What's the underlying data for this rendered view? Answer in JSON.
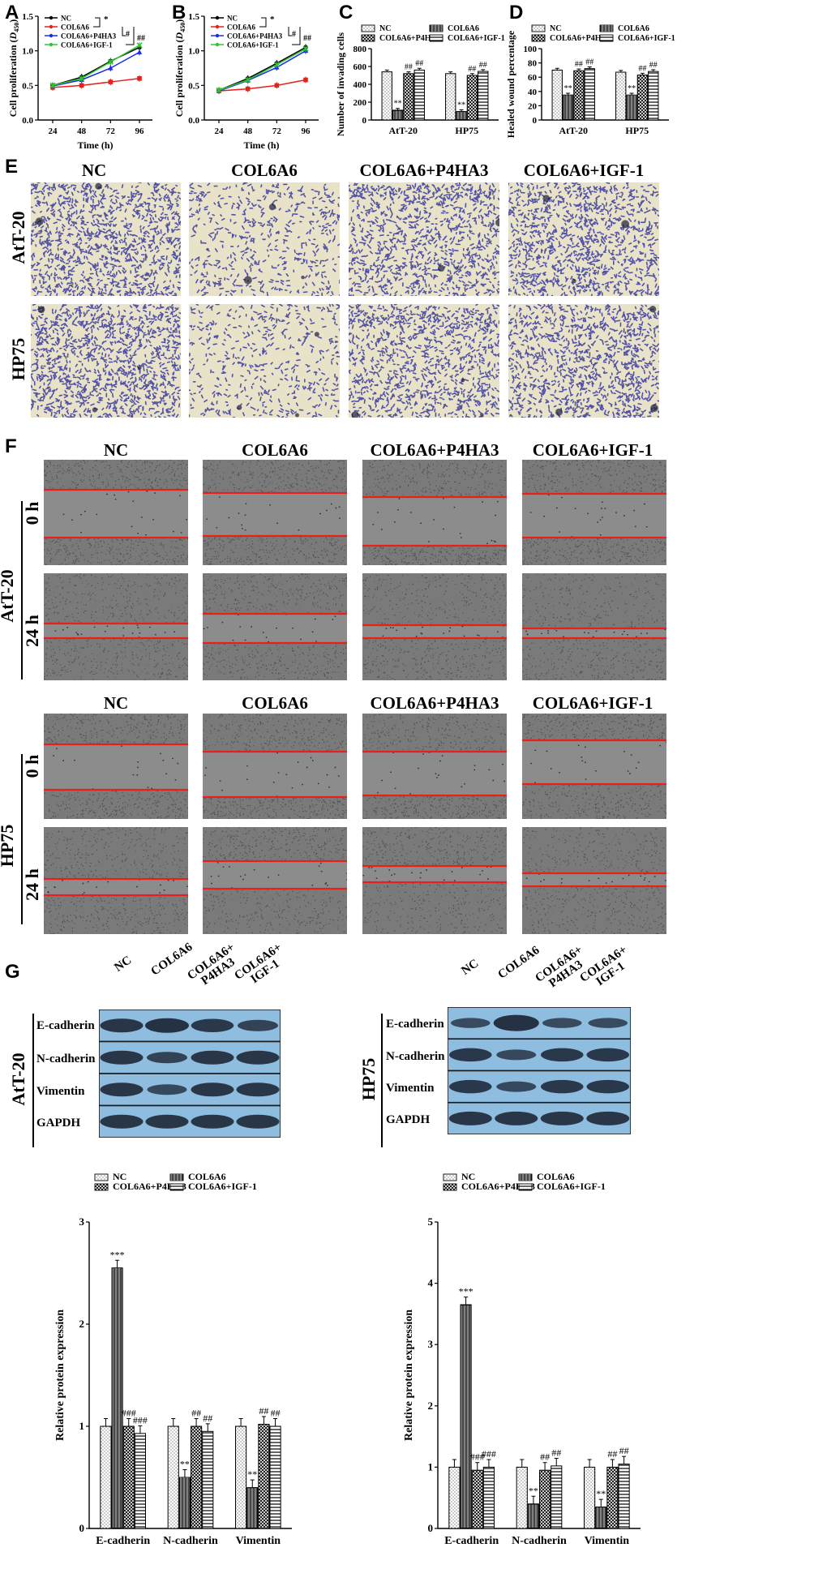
{
  "panel_letters": [
    "A",
    "B",
    "C",
    "D",
    "E",
    "F",
    "G"
  ],
  "groups": [
    "NC",
    "COL6A6",
    "COL6A6+P4HA3",
    "COL6A6+IGF-1"
  ],
  "cell_lines": [
    "AtT-20",
    "HP75"
  ],
  "time_labels": [
    "0 h",
    "24 h"
  ],
  "blot_lane_labels": [
    "NC",
    "COL6A6",
    "COL6A6+\nP4HA3",
    "COL6A6+\nIGF-1"
  ],
  "blot_bands": [
    "E-cadherin",
    "N-cadherin",
    "Vimentin",
    "GAPDH"
  ],
  "colors": {
    "nc": "#000000",
    "col6a6": "#e8201a",
    "p4ha3": "#1a2de8",
    "igf1": "#2ec82e",
    "stain_bg": "#e7e2c8",
    "stain_cell": "#3a3aa0",
    "wound_bg": "#7a7a7a",
    "wound_line": "#e8201a",
    "blot_bg": "#8fbde0",
    "band": "#1f2a3a"
  },
  "chart_data": [
    {
      "id": "A",
      "type": "line",
      "ylabel": "Cell proliferation (D450)",
      "xlabel": "Time (h)",
      "x": [
        24,
        48,
        72,
        96
      ],
      "ylim": [
        0.0,
        1.5
      ],
      "yticks": [
        "0.0",
        "0.5",
        "1.0",
        "1.5"
      ],
      "series": [
        {
          "name": "NC",
          "values": [
            0.5,
            0.62,
            0.85,
            1.05
          ]
        },
        {
          "name": "COL6A6",
          "values": [
            0.47,
            0.5,
            0.55,
            0.6
          ]
        },
        {
          "name": "COL6A6+P4HA3",
          "values": [
            0.49,
            0.58,
            0.75,
            0.98
          ]
        },
        {
          "name": "COL6A6+IGF-1",
          "values": [
            0.5,
            0.6,
            0.84,
            1.08
          ]
        }
      ],
      "annotations": [
        "*",
        "#",
        "##"
      ]
    },
    {
      "id": "B",
      "type": "line",
      "ylabel": "Cell proliferation (D450)",
      "xlabel": "Time (h)",
      "x": [
        24,
        48,
        72,
        96
      ],
      "ylim": [
        0.0,
        1.5
      ],
      "yticks": [
        "0.0",
        "0.5",
        "1.0",
        "1.5"
      ],
      "series": [
        {
          "name": "NC",
          "values": [
            0.43,
            0.6,
            0.82,
            1.05
          ]
        },
        {
          "name": "COL6A6",
          "values": [
            0.42,
            0.45,
            0.5,
            0.58
          ]
        },
        {
          "name": "COL6A6+P4HA3",
          "values": [
            0.42,
            0.57,
            0.76,
            1.0
          ]
        },
        {
          "name": "COL6A6+IGF-1",
          "values": [
            0.43,
            0.58,
            0.8,
            1.03
          ]
        }
      ],
      "annotations": [
        "*",
        "#",
        "##"
      ]
    },
    {
      "id": "C",
      "type": "bar",
      "ylabel": "Number of invading cells",
      "categories": [
        "AtT-20",
        "HP75"
      ],
      "ylim": [
        0,
        800
      ],
      "yticks": [
        "0",
        "200",
        "400",
        "600",
        "800"
      ],
      "series": [
        {
          "name": "NC",
          "values": [
            540,
            520
          ],
          "marks": [
            "",
            ""
          ]
        },
        {
          "name": "COL6A6",
          "values": [
            110,
            95
          ],
          "marks": [
            "**",
            "**"
          ]
        },
        {
          "name": "COL6A6+P4HA3",
          "values": [
            520,
            500
          ],
          "marks": [
            "##",
            "##"
          ]
        },
        {
          "name": "COL6A6+IGF-1",
          "values": [
            560,
            545
          ],
          "marks": [
            "##",
            "##"
          ]
        }
      ]
    },
    {
      "id": "D",
      "type": "bar",
      "ylabel": "Healed wound percentage",
      "categories": [
        "AtT-20",
        "HP75"
      ],
      "ylim": [
        0,
        100
      ],
      "yticks": [
        "0",
        "20",
        "40",
        "60",
        "80",
        "100"
      ],
      "series": [
        {
          "name": "NC",
          "values": [
            70,
            67
          ],
          "marks": [
            "",
            ""
          ]
        },
        {
          "name": "COL6A6",
          "values": [
            35,
            35
          ],
          "marks": [
            "**",
            "**"
          ]
        },
        {
          "name": "COL6A6+P4HA3",
          "values": [
            69,
            63
          ],
          "marks": [
            "##",
            "##"
          ]
        },
        {
          "name": "COL6A6+IGF-1",
          "values": [
            72,
            68
          ],
          "marks": [
            "##",
            "##"
          ]
        }
      ]
    },
    {
      "id": "G1",
      "type": "bar",
      "ylabel": "Relative protein expression",
      "categories": [
        "E-cadherin",
        "N-cadherin",
        "Vimentin"
      ],
      "ylim": [
        0,
        3
      ],
      "yticks": [
        "0",
        "1",
        "2",
        "3"
      ],
      "series": [
        {
          "name": "NC",
          "values": [
            1.0,
            1.0,
            1.0
          ],
          "marks": [
            "",
            "",
            ""
          ]
        },
        {
          "name": "COL6A6",
          "values": [
            2.55,
            0.5,
            0.4
          ],
          "marks": [
            "***",
            "**",
            "**"
          ]
        },
        {
          "name": "COL6A6+P4HA3",
          "values": [
            1.0,
            1.0,
            1.02
          ],
          "marks": [
            "###",
            "##",
            "##"
          ]
        },
        {
          "name": "COL6A6+IGF-1",
          "values": [
            0.93,
            0.95,
            1.0
          ],
          "marks": [
            "###",
            "##",
            "##"
          ]
        }
      ]
    },
    {
      "id": "G2",
      "type": "bar",
      "ylabel": "Relative protein expression",
      "categories": [
        "E-cadherin",
        "N-cadherin",
        "Vimentin"
      ],
      "ylim": [
        0,
        5
      ],
      "yticks": [
        "0",
        "1",
        "2",
        "3",
        "4",
        "5"
      ],
      "series": [
        {
          "name": "NC",
          "values": [
            1.0,
            1.0,
            1.0
          ],
          "marks": [
            "",
            "",
            ""
          ]
        },
        {
          "name": "COL6A6",
          "values": [
            3.65,
            0.4,
            0.35
          ],
          "marks": [
            "***",
            "**",
            "**"
          ]
        },
        {
          "name": "COL6A6+P4HA3",
          "values": [
            0.95,
            0.95,
            1.0
          ],
          "marks": [
            "###",
            "##",
            "##"
          ]
        },
        {
          "name": "COL6A6+IGF-1",
          "values": [
            1.0,
            1.02,
            1.05
          ],
          "marks": [
            "###",
            "##",
            "##"
          ]
        }
      ]
    }
  ]
}
